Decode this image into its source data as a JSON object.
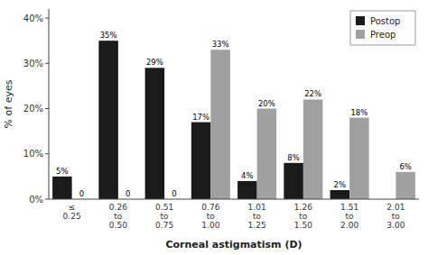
{
  "chart_data": {
    "type": "bar",
    "xlabel": "Corneal astigmatism (D)",
    "ylabel": "% of eyes",
    "categories": [
      "≤\n0.25",
      "0.26\nto\n0.50",
      "0.51\nto\n0.75",
      "0.76\nto\n1.00",
      "1.01\nto\n1.25",
      "1.26\nto\n1.50",
      "1.51\nto\n2.00",
      "2.01\nto\n3.00"
    ],
    "series": [
      {
        "name": "Postop",
        "color": "#1a1a1a",
        "values": [
          5,
          35,
          29,
          17,
          4,
          8,
          2,
          0
        ],
        "value_labels": [
          "5%",
          "35%",
          "29%",
          "17%",
          "4%",
          "8%",
          "2%",
          null
        ]
      },
      {
        "name": "Preop",
        "color": "#a0a0a0",
        "values": [
          0,
          0,
          0,
          33,
          20,
          22,
          18,
          6
        ],
        "value_labels": [
          "0",
          "0",
          "0",
          "33%",
          "20%",
          "22%",
          "18%",
          "6%"
        ]
      }
    ],
    "ylim": [
      0,
      42
    ],
    "yticks": [
      {
        "value": 0,
        "label": "0%"
      },
      {
        "value": 10,
        "label": "10%"
      },
      {
        "value": 20,
        "label": "20%"
      },
      {
        "value": 30,
        "label": "30%"
      },
      {
        "value": 40,
        "label": "40%"
      }
    ],
    "grid": false,
    "legend": "top-right",
    "data_labels": true
  }
}
